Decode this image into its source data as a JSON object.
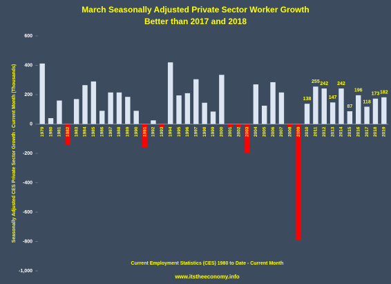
{
  "chart_data": {
    "type": "bar",
    "title": "March Seasonally Adjusted Private Sector Worker Growth",
    "subtitle": "Better than 2017 and 2018",
    "y_label": "Seasonally Adjusted CES Private Sector Growth - Current Month (Thousands)",
    "footnote": "Current Employment Statistics (CES) 1980 to Date - Current Month",
    "source": "www.itstheeconomy.info",
    "categories": [
      "1979",
      "1980",
      "1981",
      "1982",
      "1983",
      "1984",
      "1985",
      "1986",
      "1987",
      "1988",
      "1989",
      "1990",
      "1991",
      "1992",
      "1993",
      "1994",
      "1995",
      "1996",
      "1997",
      "1998",
      "1999",
      "2000",
      "2001",
      "2002",
      "2003",
      "2004",
      "2005",
      "2006",
      "2007",
      "2008",
      "2009",
      "2010",
      "2011",
      "2012",
      "2013",
      "2014",
      "2015",
      "2016",
      "2017",
      "2018",
      "2019"
    ],
    "values": [
      412,
      40,
      160,
      -140,
      170,
      265,
      290,
      90,
      215,
      215,
      185,
      90,
      -160,
      25,
      -25,
      420,
      195,
      210,
      305,
      145,
      85,
      335,
      -20,
      -20,
      -195,
      270,
      125,
      285,
      215,
      -20,
      -790,
      138,
      255,
      242,
      147,
      242,
      87,
      196,
      118,
      173,
      182
    ],
    "value_labels": [
      null,
      null,
      null,
      null,
      null,
      null,
      null,
      null,
      null,
      null,
      null,
      null,
      null,
      null,
      null,
      null,
      null,
      null,
      null,
      null,
      null,
      null,
      null,
      null,
      null,
      null,
      null,
      null,
      null,
      null,
      null,
      "138",
      "255",
      "242",
      "147",
      "242",
      "87",
      "196",
      "118",
      "173",
      "182"
    ],
    "color": "#dce6f2",
    "negative_color": "#ff0000",
    "ylim": [
      -1000,
      600
    ],
    "yticks": [
      600,
      400,
      200,
      0,
      -200,
      -400,
      -600,
      -800,
      {
        "value": -1000,
        "label": "-1,000"
      }
    ]
  }
}
